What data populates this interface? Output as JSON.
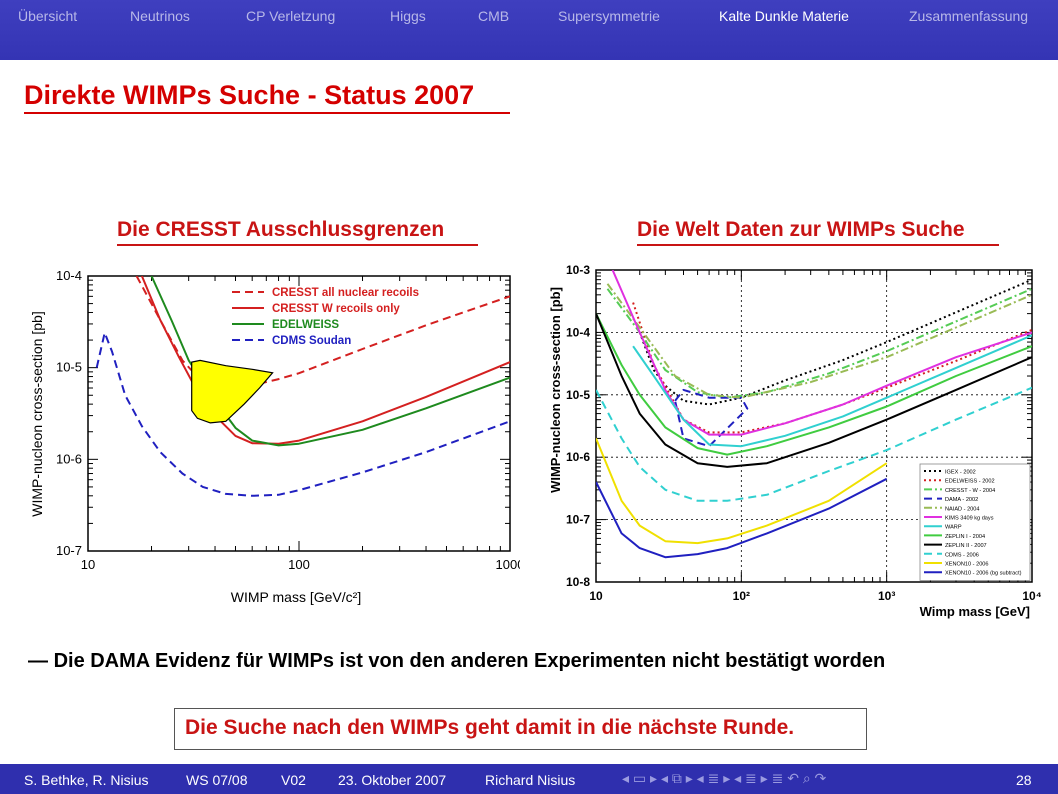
{
  "nav": {
    "items": [
      "Übersicht",
      "Neutrinos",
      "CP Verletzung",
      "Higgs",
      "CMB",
      "Supersymmetrie",
      "Kalte Dunkle Materie",
      "Zusammenfassung"
    ],
    "active": "Kalte Dunkle Materie"
  },
  "slide": {
    "title": "Direkte WIMPs Suche - Status 2007",
    "left_heading": "Die CRESST Ausschlussgrenzen",
    "right_heading": "Die Welt Daten zur WIMPs Suche",
    "bullet_dash": "—",
    "bullet": "Die DAMA Evidenz für WIMPs ist von den anderen Experimenten nicht bestätigt worden",
    "callout": "Die Suche nach den WIMPs geht damit in die nächste Runde."
  },
  "footer": {
    "authors": "S. Bethke, R. Nisius",
    "term": "WS 07/08",
    "version": "V02",
    "date": "23. Oktober 2007",
    "speaker": "Richard Nisius",
    "page": "28",
    "nav_controls": "◂ ▭ ▸ ◂ ⧉ ▸ ◂ ≣ ▸ ◂ ≣ ▸   ≣   ↶ ⌕ ↷"
  },
  "colors": {
    "nav_bg": "#3434b4",
    "title_red": "#d40000",
    "footer_bg": "#2f2fae",
    "dama_fill": "#ffff00"
  },
  "chart_data": [
    {
      "type": "line",
      "x_scale": "log",
      "y_scale": "log",
      "xlim": [
        10,
        1000
      ],
      "ylim": [
        1e-07,
        0.0001
      ],
      "xlabel": "WIMP mass [GeV/c²]",
      "ylabel": "WIMP-nucleon cross-section [pb]",
      "x_ticks": [
        "10",
        "100",
        "1000"
      ],
      "y_ticks": [
        "10-4",
        "10-5",
        "10-6",
        "10-7"
      ],
      "legend_position": "top-right",
      "series": [
        {
          "name": "CRESST all nuclear recoils",
          "color": "#d42020",
          "style": "dashed",
          "points": [
            [
              17,
              0.0001
            ],
            [
              22,
              3.3e-05
            ],
            [
              28,
              1.2e-05
            ],
            [
              33,
              8e-06
            ],
            [
              40,
              6.5e-06
            ],
            [
              48,
              6.1e-06
            ],
            [
              60,
              6.4e-06
            ],
            [
              80,
              7.5e-06
            ],
            [
              100,
              8.7e-06
            ],
            [
              200,
              1.6e-05
            ],
            [
              400,
              2.9e-05
            ],
            [
              1000,
              6e-05
            ]
          ]
        },
        {
          "name": "CRESST W recoils only",
          "color": "#d42020",
          "style": "solid",
          "points": [
            [
              18,
              0.0001
            ],
            [
              22,
              3.3e-05
            ],
            [
              27,
              1.3e-05
            ],
            [
              33,
              5.5e-06
            ],
            [
              40,
              3e-06
            ],
            [
              50,
              1.8e-06
            ],
            [
              60,
              1.5e-06
            ],
            [
              80,
              1.48e-06
            ],
            [
              100,
              1.6e-06
            ],
            [
              200,
              2.6e-06
            ],
            [
              400,
              4.8e-06
            ],
            [
              1000,
              1.15e-05
            ]
          ]
        },
        {
          "name": "EDELWEISS",
          "color": "#1e8a1e",
          "style": "solid",
          "points": [
            [
              20,
              0.0001
            ],
            [
              25,
              3.2e-05
            ],
            [
              30,
              1.2e-05
            ],
            [
              40,
              4.4e-06
            ],
            [
              50,
              2.2e-06
            ],
            [
              60,
              1.6e-06
            ],
            [
              80,
              1.42e-06
            ],
            [
              100,
              1.48e-06
            ],
            [
              200,
              2.1e-06
            ],
            [
              400,
              3.6e-06
            ],
            [
              1000,
              7.8e-06
            ]
          ]
        },
        {
          "name": "CDMS Soudan",
          "color": "#2020c0",
          "style": "dashed",
          "points": [
            [
              11,
              1e-05
            ],
            [
              12,
              2.4e-05
            ],
            [
              13,
              1.5e-05
            ],
            [
              15,
              5e-06
            ],
            [
              18,
              2.3e-06
            ],
            [
              22,
              1.2e-06
            ],
            [
              28,
              7e-07
            ],
            [
              35,
              5e-07
            ],
            [
              45,
              4.2e-07
            ],
            [
              60,
              4e-07
            ],
            [
              80,
              4.1e-07
            ],
            [
              100,
              4.6e-07
            ],
            [
              200,
              7.2e-07
            ],
            [
              400,
              1.2e-06
            ],
            [
              1000,
              2.6e-06
            ]
          ]
        },
        {
          "name": "DAMA region",
          "color": "#ffff00",
          "style": "filled",
          "points": [
            [
              31,
              1.15e-05
            ],
            [
              34,
              1.2e-05
            ],
            [
              45,
              1.05e-05
            ],
            [
              60,
              9.6e-06
            ],
            [
              75,
              8.8e-06
            ],
            [
              65,
              6e-06
            ],
            [
              55,
              4e-06
            ],
            [
              45,
              2.6e-06
            ],
            [
              38,
              2.5e-06
            ],
            [
              33,
              2.8e-06
            ],
            [
              31,
              3.4e-06
            ]
          ]
        }
      ]
    },
    {
      "type": "line",
      "x_scale": "log",
      "y_scale": "log",
      "xlim": [
        10,
        10000
      ],
      "ylim": [
        1e-08,
        0.001
      ],
      "xlabel": "Wimp mass [GeV]",
      "ylabel": "WIMP-nucleon cross-section [pb]",
      "x_ticks": [
        "10",
        "10²",
        "10³",
        "10⁴"
      ],
      "y_ticks": [
        "10-3",
        "10-4",
        "10-5",
        "10-6",
        "10-7",
        "10-8"
      ],
      "legend_position": "bottom-right",
      "series": [
        {
          "name": "IGEX - 2002",
          "color": "#000000",
          "style": "dotted",
          "points": [
            [
              20,
              0.0001
            ],
            [
              25,
              2.5e-05
            ],
            [
              30,
              1.4e-05
            ],
            [
              40,
              8e-06
            ],
            [
              60,
              7e-06
            ],
            [
              100,
              9e-06
            ],
            [
              200,
              1.7e-05
            ],
            [
              500,
              3.6e-05
            ],
            [
              1000,
              7e-05
            ],
            [
              3000,
              0.00021
            ],
            [
              10000,
              0.0007
            ]
          ]
        },
        {
          "name": "EDELWEISS - 2002",
          "color": "#d42020",
          "style": "dotted",
          "points": [
            [
              18,
              0.0003
            ],
            [
              25,
              3e-05
            ],
            [
              40,
              4e-06
            ],
            [
              60,
              2.5e-06
            ],
            [
              100,
              2.5e-06
            ],
            [
              200,
              3.5e-06
            ],
            [
              500,
              7e-06
            ],
            [
              1000,
              1.3e-05
            ],
            [
              3000,
              3.5e-05
            ],
            [
              10000,
              0.00011
            ]
          ]
        },
        {
          "name": "CRESST - W - 2004",
          "color": "#55cc55",
          "style": "dashdot",
          "points": [
            [
              12,
              0.0005
            ],
            [
              20,
              0.0001
            ],
            [
              30,
              2.5e-05
            ],
            [
              50,
              1.1e-05
            ],
            [
              80,
              9e-06
            ],
            [
              150,
              1.1e-05
            ],
            [
              400,
              2.2e-05
            ],
            [
              1000,
              5e-05
            ],
            [
              3000,
              0.00015
            ],
            [
              10000,
              0.0005
            ]
          ]
        },
        {
          "name": "DAMA - 2002",
          "color": "#2020c0",
          "style": "dashed",
          "points": [
            [
              35,
              8e-06
            ],
            [
              40,
              1.2e-05
            ],
            [
              60,
              9e-06
            ],
            [
              100,
              9e-06
            ],
            [
              110,
              6e-06
            ],
            [
              60,
              1.5e-06
            ],
            [
              40,
              2e-06
            ],
            [
              35,
              8e-06
            ]
          ]
        },
        {
          "name": "NAIAD - 2004",
          "color": "#99bb55",
          "style": "dashdot",
          "points": [
            [
              12,
              0.0006
            ],
            [
              20,
              0.00012
            ],
            [
              35,
              2e-05
            ],
            [
              60,
              1e-05
            ],
            [
              100,
              9e-06
            ],
            [
              300,
              1.6e-05
            ],
            [
              1000,
              4e-05
            ],
            [
              3000,
              0.00012
            ],
            [
              10000,
              0.0004
            ]
          ]
        },
        {
          "name": "KIMS 3409 kg days",
          "color": "#e030e0",
          "style": "solid",
          "points": [
            [
              13,
              0.001
            ],
            [
              20,
              0.0001
            ],
            [
              30,
              1.2e-05
            ],
            [
              40,
              4e-06
            ],
            [
              60,
              2.3e-06
            ],
            [
              100,
              2.3e-06
            ],
            [
              200,
              3.5e-06
            ],
            [
              500,
              7e-06
            ],
            [
              1000,
              1.4e-05
            ],
            [
              3000,
              4e-05
            ],
            [
              10000,
              0.0001
            ]
          ]
        },
        {
          "name": "WARP",
          "color": "#30d0d0",
          "style": "solid",
          "points": [
            [
              18,
              6e-05
            ],
            [
              25,
              2e-05
            ],
            [
              40,
              4e-06
            ],
            [
              60,
              1.6e-06
            ],
            [
              100,
              1.5e-06
            ],
            [
              200,
              2.2e-06
            ],
            [
              500,
              4.5e-06
            ],
            [
              1000,
              9e-06
            ],
            [
              3000,
              2.7e-05
            ],
            [
              10000,
              9e-05
            ]
          ]
        },
        {
          "name": "ZEPLIN I - 2004",
          "color": "#40cc40",
          "style": "solid",
          "points": [
            [
              10,
              0.0002
            ],
            [
              15,
              3e-05
            ],
            [
              20,
              1e-05
            ],
            [
              30,
              3e-06
            ],
            [
              50,
              1.4e-06
            ],
            [
              80,
              1.1e-06
            ],
            [
              150,
              1.5e-06
            ],
            [
              400,
              3e-06
            ],
            [
              1000,
              6.5e-06
            ],
            [
              3000,
              2e-05
            ],
            [
              10000,
              6e-05
            ]
          ]
        },
        {
          "name": "ZEPLIN II - 2007",
          "color": "#000000",
          "style": "solid",
          "points": [
            [
              10,
              0.0002
            ],
            [
              15,
              2e-05
            ],
            [
              20,
              5e-06
            ],
            [
              30,
              1.6e-06
            ],
            [
              50,
              8e-07
            ],
            [
              80,
              7e-07
            ],
            [
              150,
              8e-07
            ],
            [
              400,
              1.7e-06
            ],
            [
              1000,
              4e-06
            ],
            [
              3000,
              1.2e-05
            ],
            [
              10000,
              4e-05
            ]
          ]
        },
        {
          "name": "CDMS - 2006",
          "color": "#30d0d0",
          "style": "dashed",
          "points": [
            [
              10,
              1.2e-05
            ],
            [
              15,
              2e-06
            ],
            [
              20,
              7e-07
            ],
            [
              30,
              3e-07
            ],
            [
              50,
              2e-07
            ],
            [
              80,
              2e-07
            ],
            [
              150,
              2.5e-07
            ],
            [
              400,
              6e-07
            ],
            [
              1000,
              1.3e-06
            ],
            [
              3000,
              4e-06
            ],
            [
              10000,
              1.3e-05
            ]
          ]
        },
        {
          "name": "XENON10 - 2006",
          "color": "#f0e000",
          "style": "solid",
          "points": [
            [
              10,
              2e-06
            ],
            [
              15,
              2e-07
            ],
            [
              20,
              8e-08
            ],
            [
              30,
              4.5e-08
            ],
            [
              50,
              4.2e-08
            ],
            [
              80,
              5e-08
            ],
            [
              150,
              8e-08
            ],
            [
              400,
              2e-07
            ],
            [
              1000,
              8e-07
            ]
          ]
        },
        {
          "name": "XENON10 - 2006 (bg subtract)",
          "color": "#2020c0",
          "style": "solid",
          "points": [
            [
              10,
              4e-07
            ],
            [
              15,
              6e-08
            ],
            [
              20,
              3.5e-08
            ],
            [
              30,
              2.5e-08
            ],
            [
              50,
              2.8e-08
            ],
            [
              80,
              3.5e-08
            ],
            [
              150,
              6e-08
            ],
            [
              400,
              1.5e-07
            ],
            [
              1000,
              4.5e-07
            ]
          ]
        }
      ]
    }
  ]
}
